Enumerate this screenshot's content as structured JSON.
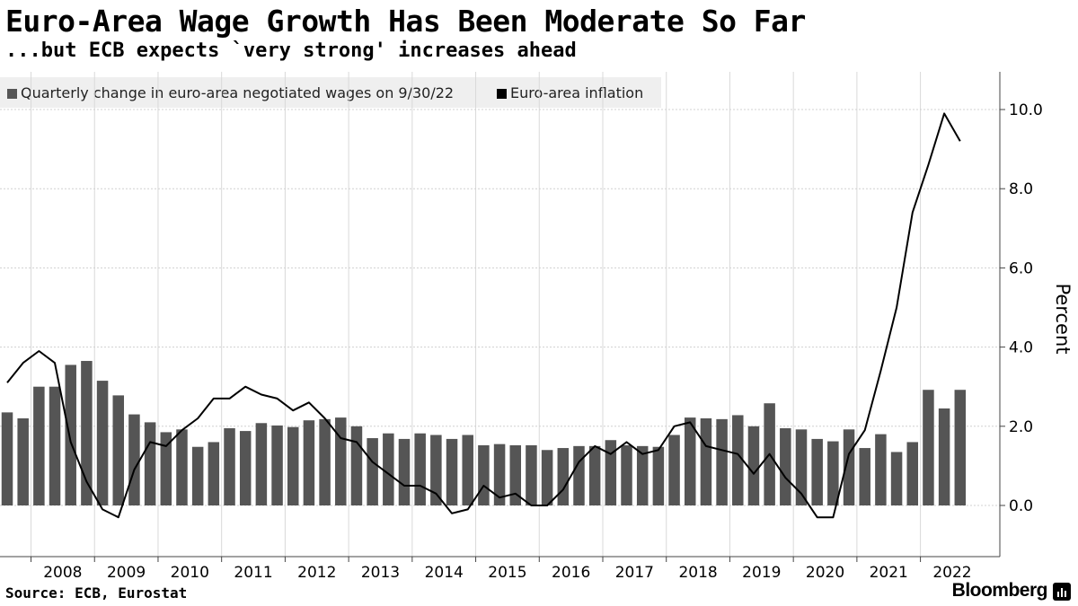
{
  "header": {
    "title": "Euro-Area Wage Growth Has Been Moderate So Far",
    "subtitle": "...but ECB expects `very strong' increases ahead"
  },
  "legend": {
    "wages": "Quarterly change in euro-area negotiated wages  on 9/30/22",
    "inflation": "Euro-area inflation"
  },
  "footer": {
    "source": "Source: ECB, Eurostat",
    "brand": "Bloomberg"
  },
  "colors": {
    "bars": "#555555",
    "line": "#000000",
    "legend_bg": "#efefef"
  },
  "chart_data": {
    "type": "bar",
    "title": "Euro-Area Wage Growth Has Been Moderate So Far",
    "subtitle": "...but ECB expects `very strong' increases ahead",
    "ylabel": "Percent",
    "ylim": [
      -1.2,
      11
    ],
    "yticks": [
      "0.0",
      "2.0",
      "4.0",
      "6.0",
      "8.0",
      "10.0"
    ],
    "ytick_values": [
      0,
      2,
      4,
      6,
      8,
      10
    ],
    "x_start": "2007 Q3",
    "x_labels": [
      "2008",
      "2009",
      "2010",
      "2011",
      "2012",
      "2013",
      "2014",
      "2015",
      "2016",
      "2017",
      "2018",
      "2019",
      "2020",
      "2021",
      "2022"
    ],
    "grid": true,
    "legend_position": "top-left",
    "series": [
      {
        "name": "Quarterly change in euro-area negotiated wages  on 9/30/22",
        "kind": "bar",
        "values": [
          2.35,
          2.2,
          3.0,
          3.0,
          3.55,
          3.65,
          3.15,
          2.78,
          2.3,
          2.1,
          1.85,
          1.92,
          1.48,
          1.6,
          1.95,
          1.88,
          2.08,
          2.02,
          1.98,
          2.15,
          2.18,
          2.22,
          2.0,
          1.7,
          1.82,
          1.68,
          1.82,
          1.78,
          1.68,
          1.78,
          1.52,
          1.55,
          1.52,
          1.52,
          1.4,
          1.45,
          1.5,
          1.5,
          1.65,
          1.52,
          1.5,
          1.48,
          1.78,
          2.22,
          2.2,
          2.18,
          2.28,
          2.0,
          2.58,
          1.95,
          1.92,
          1.68,
          1.62,
          1.92,
          1.45,
          1.8,
          1.35,
          1.6,
          2.92,
          2.45,
          2.92
        ]
      },
      {
        "name": "Euro-area inflation",
        "kind": "line",
        "values": [
          3.1,
          3.6,
          3.9,
          3.6,
          1.6,
          0.6,
          -0.1,
          -0.3,
          0.9,
          1.6,
          1.5,
          1.9,
          2.2,
          2.7,
          2.7,
          3.0,
          2.8,
          2.7,
          2.4,
          2.6,
          2.2,
          1.7,
          1.6,
          1.1,
          0.8,
          0.5,
          0.5,
          0.3,
          -0.2,
          -0.1,
          0.5,
          0.2,
          0.3,
          -0.0,
          -0.0,
          0.4,
          1.1,
          1.5,
          1.3,
          1.6,
          1.3,
          1.4,
          2.0,
          2.1,
          1.5,
          1.4,
          1.3,
          0.8,
          1.3,
          0.7,
          0.3,
          -0.3,
          -0.3,
          1.3,
          1.9,
          3.4,
          5.0,
          7.4,
          8.6,
          9.9,
          9.2
        ]
      }
    ]
  }
}
